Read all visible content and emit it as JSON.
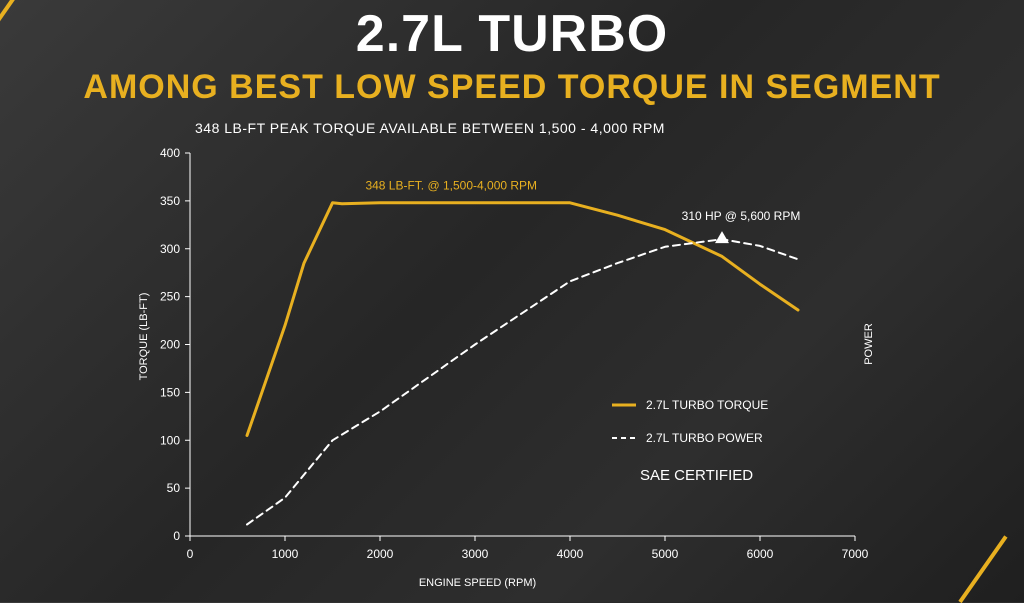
{
  "header": {
    "title": "2.7L TURBO",
    "subtitle": "AMONG BEST LOW SPEED TORQUE IN SEGMENT",
    "note": "348 LB-FT PEAK TORQUE AVAILABLE BETWEEN 1,500 - 4,000 RPM"
  },
  "colors": {
    "torque": "#e8b020",
    "power": "#ffffff",
    "accent": "#e8b020"
  },
  "chart_data": {
    "type": "line",
    "xlabel": "ENGINE SPEED (RPM)",
    "ylabel": "TORQUE (LB-FT)",
    "y2label": "POWER",
    "xlim": [
      0,
      7000
    ],
    "ylim": [
      0,
      400
    ],
    "xticks": [
      "0",
      "1000",
      "2000",
      "3000",
      "4000",
      "5000",
      "6000",
      "7000"
    ],
    "yticks": [
      "0",
      "50",
      "100",
      "150",
      "200",
      "250",
      "300",
      "350",
      "400"
    ],
    "grid": false,
    "legend_position": "lower-right",
    "series": [
      {
        "name": "2.7L TURBO TORQUE",
        "style": "solid",
        "x": [
          600,
          1000,
          1200,
          1500,
          1600,
          2000,
          3000,
          4000,
          4500,
          5000,
          5600,
          6000,
          6400
        ],
        "y": [
          105,
          220,
          285,
          348,
          347,
          348,
          348,
          348,
          335,
          320,
          292,
          263,
          236
        ]
      },
      {
        "name": "2.7L TURBO POWER",
        "style": "dashed",
        "x": [
          600,
          1000,
          1500,
          2000,
          3000,
          4000,
          4500,
          5000,
          5600,
          6000,
          6400
        ],
        "y": [
          12,
          40,
          100,
          130,
          200,
          266,
          285,
          302,
          310,
          303,
          289
        ]
      }
    ],
    "annotations": [
      {
        "text": "348 LB-FT. @ 1,500-4,000 RPM",
        "x": 2750,
        "y": 362,
        "series": 0
      },
      {
        "text": "310 HP @ 5,600 RPM",
        "x": 5800,
        "y": 330,
        "series": 1,
        "marker_x": 5600,
        "marker_y": 310
      }
    ],
    "legend_note": "SAE CERTIFIED"
  }
}
